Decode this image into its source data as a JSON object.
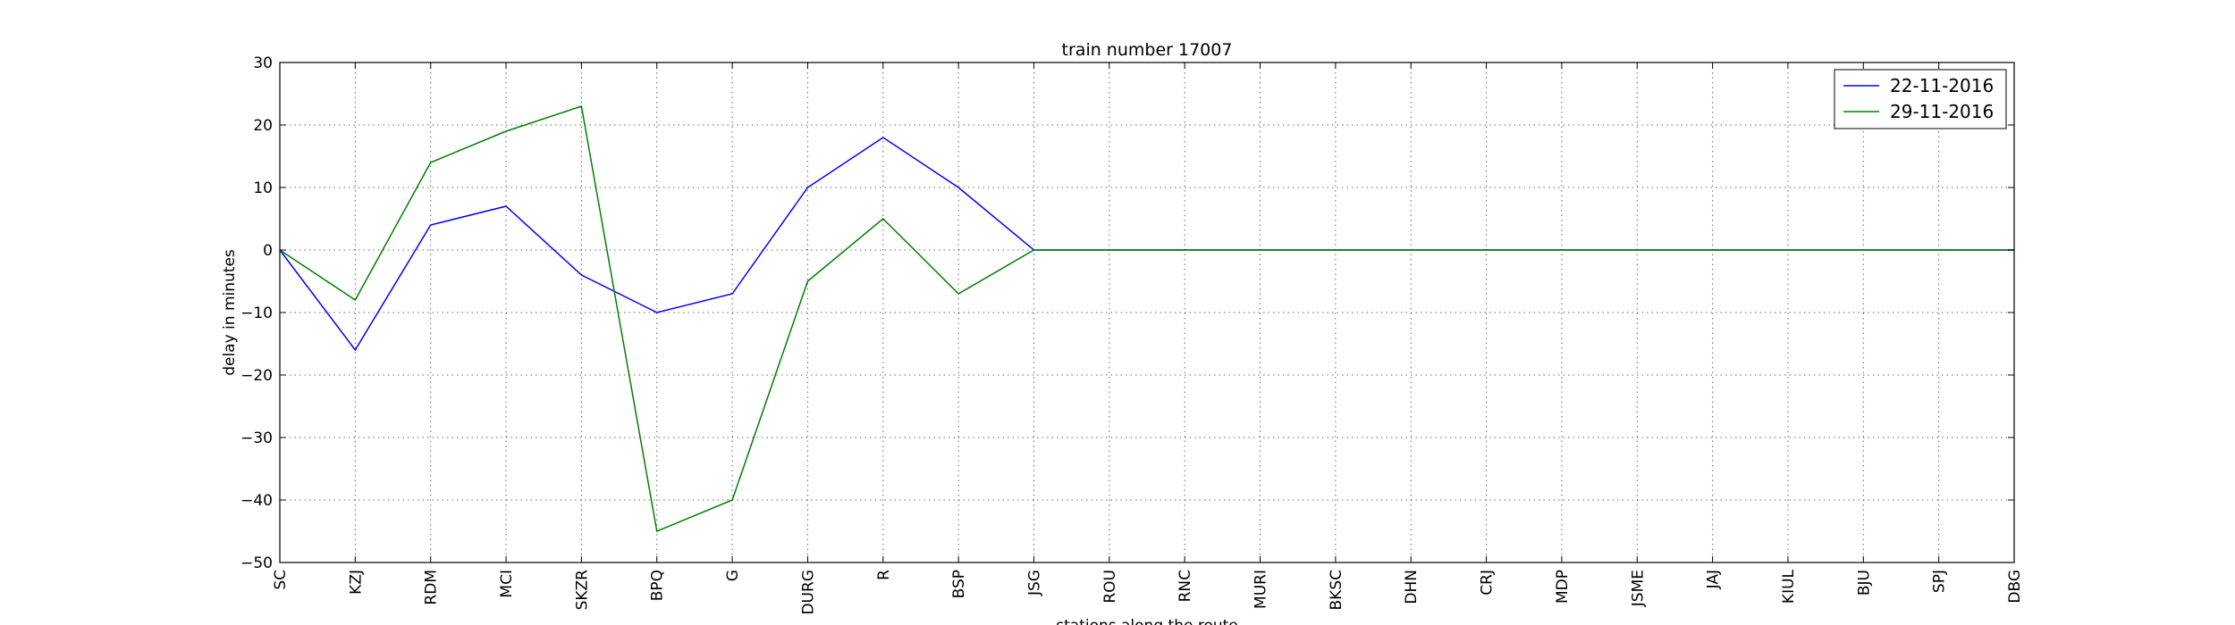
{
  "chart_data": {
    "type": "line",
    "title": "train number 17007",
    "xlabel": "stations along the route",
    "ylabel": "delay in minutes",
    "categories": [
      "SC",
      "KZJ",
      "RDM",
      "MCI",
      "SKZR",
      "BPQ",
      "G",
      "DURG",
      "R",
      "BSP",
      "JSG",
      "ROU",
      "RNC",
      "MURI",
      "BKSC",
      "DHN",
      "CRJ",
      "MDP",
      "JSME",
      "JAJ",
      "KIUL",
      "BJU",
      "SPJ",
      "DBG"
    ],
    "ylim": [
      -50,
      30
    ],
    "yticks": [
      -50,
      -40,
      -30,
      -20,
      -10,
      0,
      10,
      20,
      30
    ],
    "grid": true,
    "legend_position": "top-right",
    "series": [
      {
        "name": "22-11-2016",
        "color": "#0000ff",
        "values": [
          0,
          -16,
          4,
          7,
          -4,
          -10,
          -7,
          10,
          18,
          10,
          0,
          0,
          0,
          0,
          0,
          0,
          0,
          0,
          0,
          0,
          0,
          0,
          0,
          0
        ]
      },
      {
        "name": "29-11-2016",
        "color": "#008000",
        "values": [
          0,
          -8,
          14,
          19,
          23,
          -45,
          -40,
          -5,
          5,
          -7,
          0,
          0,
          0,
          0,
          0,
          0,
          0,
          0,
          0,
          0,
          0,
          0,
          0,
          0
        ]
      }
    ]
  }
}
